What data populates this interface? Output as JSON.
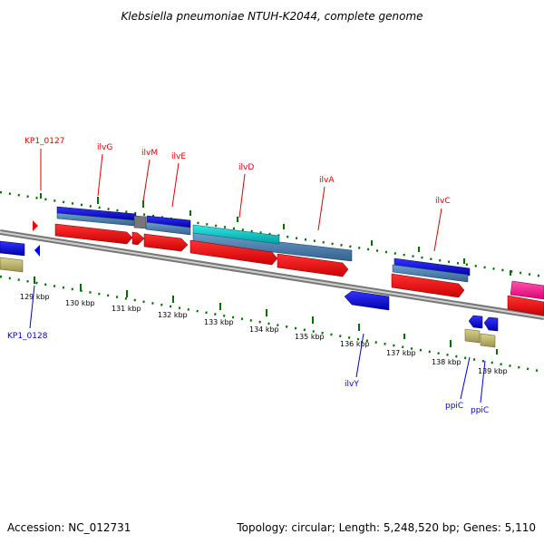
{
  "title": "Klebsiella pneumoniae NTUH-K2044, complete genome",
  "footer": {
    "accession": "Accession: NC_012731",
    "summary": "Topology: circular; Length: 5,248,520 bp; Genes: 5,110"
  },
  "scale_ticks": [
    "129 kbp",
    "130 kbp",
    "131 kbp",
    "132 kbp",
    "133 kbp",
    "134 kbp",
    "135 kbp",
    "136 kbp",
    "137 kbp",
    "138 kbp",
    "139 kbp"
  ],
  "forward_gene_labels": [
    "KP1_0127",
    "ilvG",
    "ilvM",
    "ilvE",
    "ilvD",
    "ilvA",
    "ilvC"
  ],
  "reverse_gene_labels": [
    "KP1_0128",
    "ilvY",
    "ppiC",
    "ppiC"
  ],
  "colors": {
    "gene_forward": "#ff0000",
    "gene_reverse": "#0000ff",
    "cds_blue": "#0000dd",
    "cds_steel": "#4682b4",
    "cds_cyan": "#00cccc",
    "trna_khaki": "#bdb76b",
    "misc_pink": "#ff1493",
    "backbone": "#888888",
    "tick_green": "#006400",
    "label_forward": "#e00000",
    "label_reverse": "#0000cc"
  }
}
